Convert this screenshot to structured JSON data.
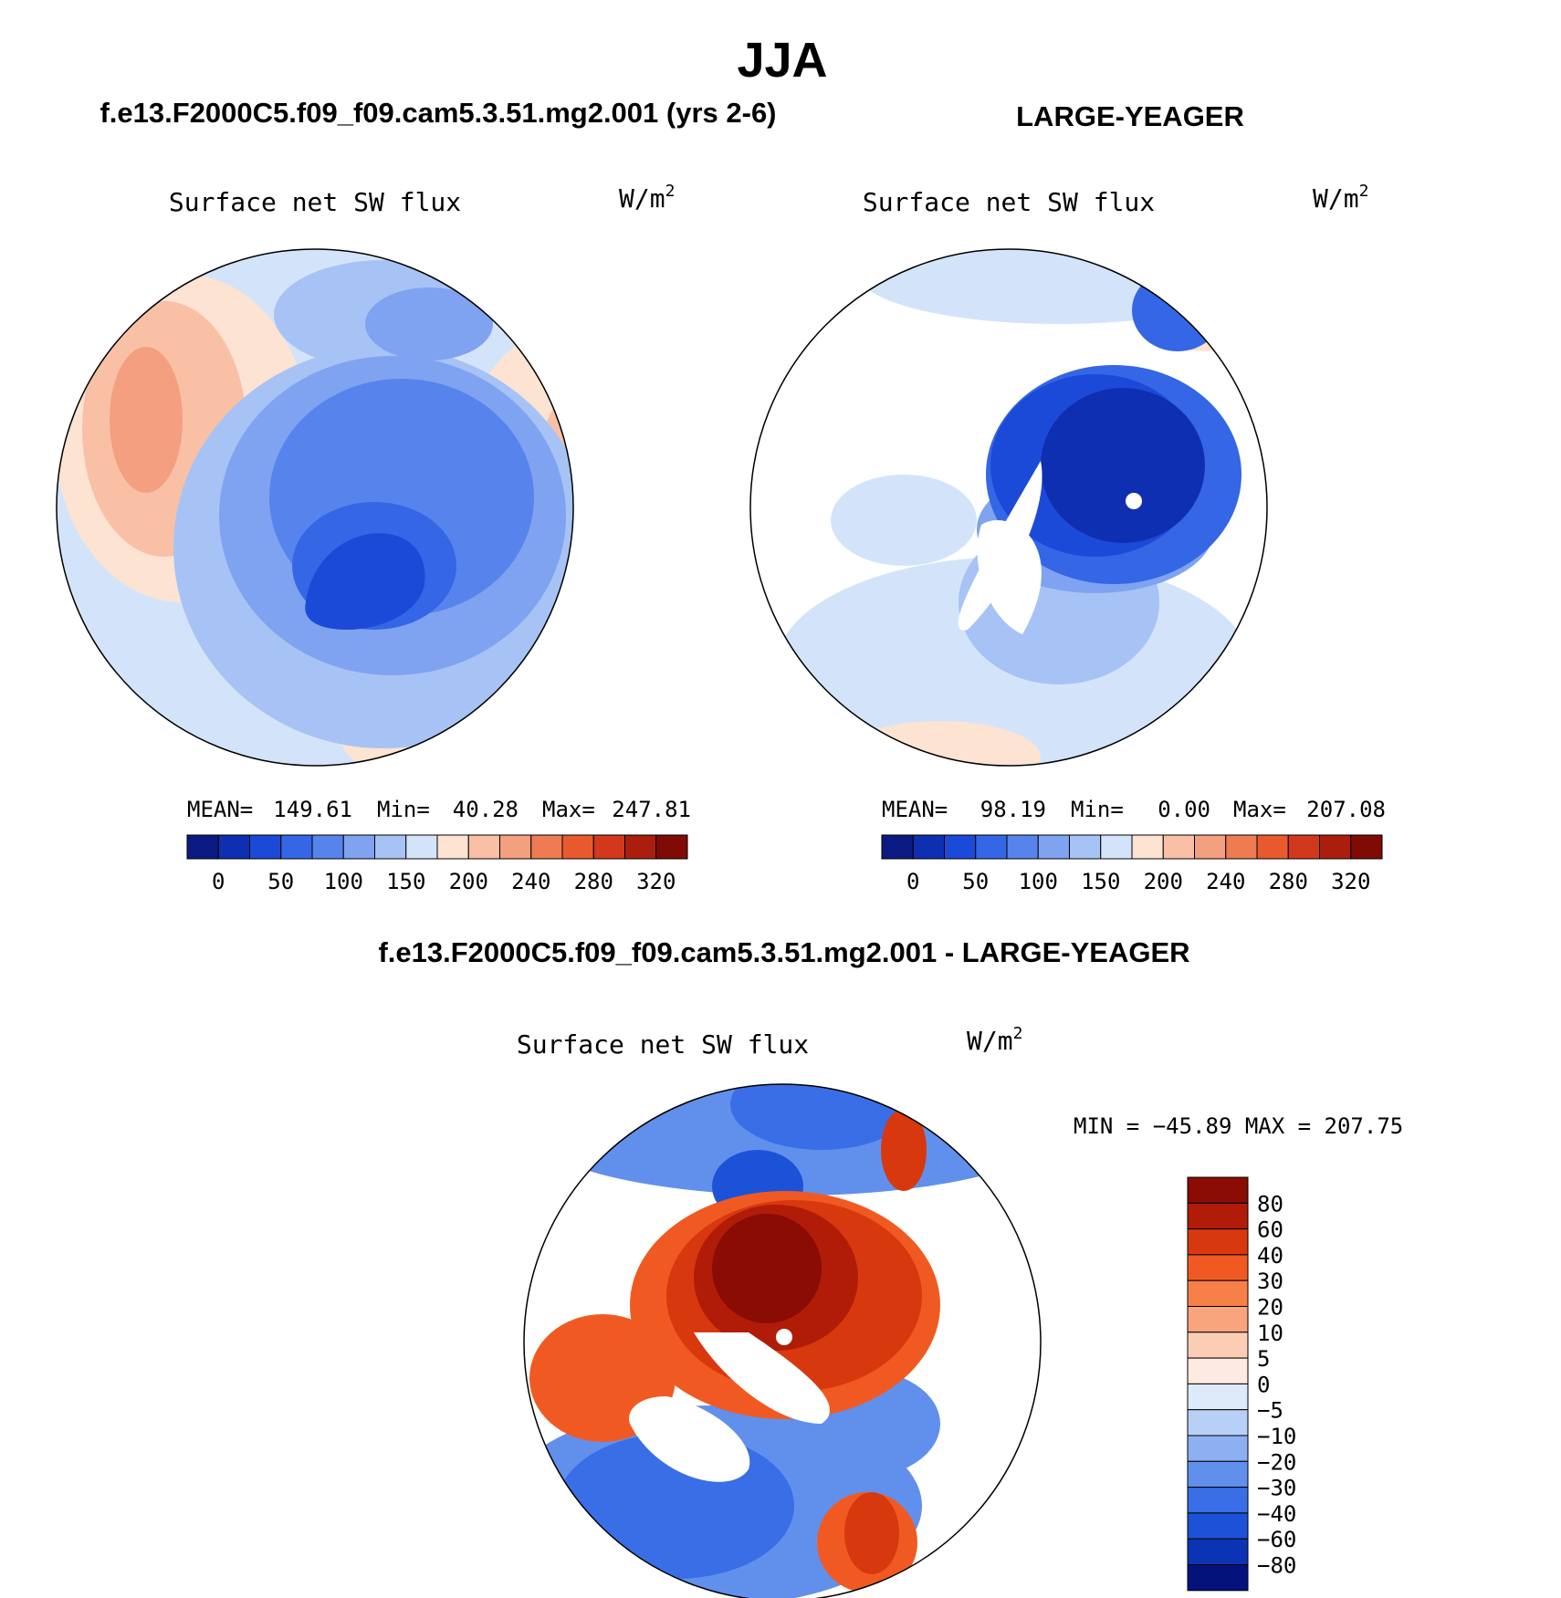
{
  "page": {
    "title": "JJA",
    "colors": {
      "ice": "#08197e",
      "pole_hole": "#ffffff",
      "outline": "#000000"
    }
  },
  "chart_data": [
    {
      "type": "heatmap",
      "projection": "north-polar-stereographic",
      "case_title": "f.e13.F2000C5.f09_f09.cam5.3.51.mg2.001 (yrs 2-6)",
      "title": "Surface net SW flux",
      "units": "W/m",
      "units_exp": "2",
      "stats": {
        "mean_label": "MEAN=",
        "mean": "149.61",
        "min_label": "Min=",
        "min": "40.28",
        "max_label": "Max=",
        "max": "247.81"
      },
      "levels": [
        "0",
        "50",
        "100",
        "150",
        "200",
        "240",
        "280",
        "320"
      ],
      "palette": [
        "#0a1a82",
        "#0e2fb2",
        "#1c4ad8",
        "#3466e6",
        "#5684ec",
        "#7fa3f0",
        "#a7c3f5",
        "#d3e4fa",
        "#fce3d2",
        "#f9c0a5",
        "#f49f80",
        "#ee7b52",
        "#e85a2e",
        "#d2381c",
        "#ab1e0e",
        "#800a04"
      ]
    },
    {
      "type": "heatmap",
      "projection": "north-polar-stereographic",
      "case_title": "LARGE-YEAGER",
      "title": "Surface net SW flux",
      "units": "W/m",
      "units_exp": "2",
      "stats": {
        "mean_label": "MEAN=",
        "mean": "98.19",
        "min_label": "Min=",
        "min": "0.00",
        "max_label": "Max=",
        "max": "207.08"
      },
      "levels": [
        "0",
        "50",
        "100",
        "150",
        "200",
        "240",
        "280",
        "320"
      ],
      "palette": [
        "#0a1a82",
        "#0e2fb2",
        "#1c4ad8",
        "#3466e6",
        "#5684ec",
        "#7fa3f0",
        "#a7c3f5",
        "#d3e4fa",
        "#fce3d2",
        "#f9c0a5",
        "#f49f80",
        "#ee7b52",
        "#e85a2e",
        "#d2381c",
        "#ab1e0e",
        "#800a04"
      ]
    },
    {
      "type": "heatmap",
      "projection": "north-polar-stereographic",
      "case_title": "f.e13.F2000C5.f09_f09.cam5.3.51.mg2.001 - LARGE-YEAGER",
      "title": "Surface net SW flux",
      "units": "W/m",
      "units_exp": "2",
      "minmax": "MIN = −45.89 MAX = 207.75",
      "levels": [
        "80",
        "60",
        "40",
        "30",
        "20",
        "10",
        "5",
        "0",
        "−5",
        "−10",
        "−20",
        "−30",
        "−40",
        "−60",
        "−80"
      ],
      "palette": [
        "#8a0c04",
        "#b01c08",
        "#d8380e",
        "#f05a22",
        "#f68048",
        "#f8a47c",
        "#fbcdb4",
        "#fdeae0",
        "#dceaf9",
        "#b8d0f6",
        "#8cb0f2",
        "#6190ec",
        "#3a6ee6",
        "#1c52d8",
        "#0b34b4",
        "#04137c"
      ]
    }
  ]
}
